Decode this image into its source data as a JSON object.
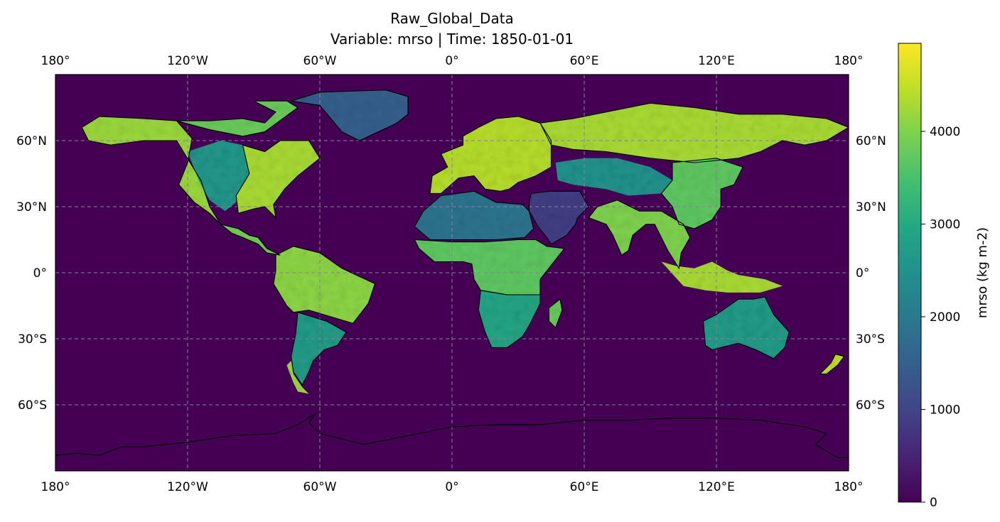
{
  "chart_data": {
    "type": "heatmap",
    "title": "Raw_Global_Data",
    "subtitle": "Variable: mrso | Time: 1850-01-01",
    "projection": "PlateCarree",
    "lon_range": [
      -180,
      180
    ],
    "lat_range": [
      -90,
      90
    ],
    "lon_ticks": [
      {
        "value": -180,
        "label": "180°"
      },
      {
        "value": -120,
        "label": "120°W"
      },
      {
        "value": -60,
        "label": "60°W"
      },
      {
        "value": 0,
        "label": "0°"
      },
      {
        "value": 60,
        "label": "60°E"
      },
      {
        "value": 120,
        "label": "120°E"
      },
      {
        "value": 180,
        "label": "180°"
      }
    ],
    "lat_ticks": [
      {
        "value": 60,
        "label": "60°N"
      },
      {
        "value": 30,
        "label": "30°N"
      },
      {
        "value": 0,
        "label": "0°"
      },
      {
        "value": -30,
        "label": "30°S"
      },
      {
        "value": -60,
        "label": "60°S"
      }
    ],
    "gridlines": true,
    "ocean_value": 0,
    "colorbar": {
      "label": "mrso (kg m-2)",
      "vmin": 0,
      "vmax": 4950,
      "cmap": "viridis",
      "ticks": [
        {
          "value": 0,
          "label": "0"
        },
        {
          "value": 1000,
          "label": "1000"
        },
        {
          "value": 2000,
          "label": "2000"
        },
        {
          "value": 3000,
          "label": "3000"
        },
        {
          "value": 4000,
          "label": "4000"
        }
      ]
    },
    "regions": [
      {
        "name": "north-america-west",
        "value": 4200
      },
      {
        "name": "north-america-interior",
        "value": 2600
      },
      {
        "name": "north-america-east",
        "value": 4300
      },
      {
        "name": "canada-north",
        "value": 3800
      },
      {
        "name": "greenland",
        "value": 1500
      },
      {
        "name": "central-america",
        "value": 3900
      },
      {
        "name": "south-america-north",
        "value": 4100
      },
      {
        "name": "south-america-south",
        "value": 2700
      },
      {
        "name": "patagonia",
        "value": 4200
      },
      {
        "name": "europe",
        "value": 4400
      },
      {
        "name": "siberia",
        "value": 4300
      },
      {
        "name": "central-asia",
        "value": 2500
      },
      {
        "name": "east-asia",
        "value": 3700
      },
      {
        "name": "south-asia",
        "value": 4000
      },
      {
        "name": "middle-east",
        "value": 900
      },
      {
        "name": "sahara",
        "value": 1900
      },
      {
        "name": "africa-central",
        "value": 3700
      },
      {
        "name": "africa-south",
        "value": 2900
      },
      {
        "name": "madagascar",
        "value": 3800
      },
      {
        "name": "indonesia",
        "value": 4300
      },
      {
        "name": "australia",
        "value": 2700
      },
      {
        "name": "new-zealand",
        "value": 4500
      },
      {
        "name": "antarctica",
        "value": 0
      }
    ],
    "colors": {
      "ocean": "#440154",
      "grid": "#8a7f99",
      "coastline": "#000000"
    }
  }
}
